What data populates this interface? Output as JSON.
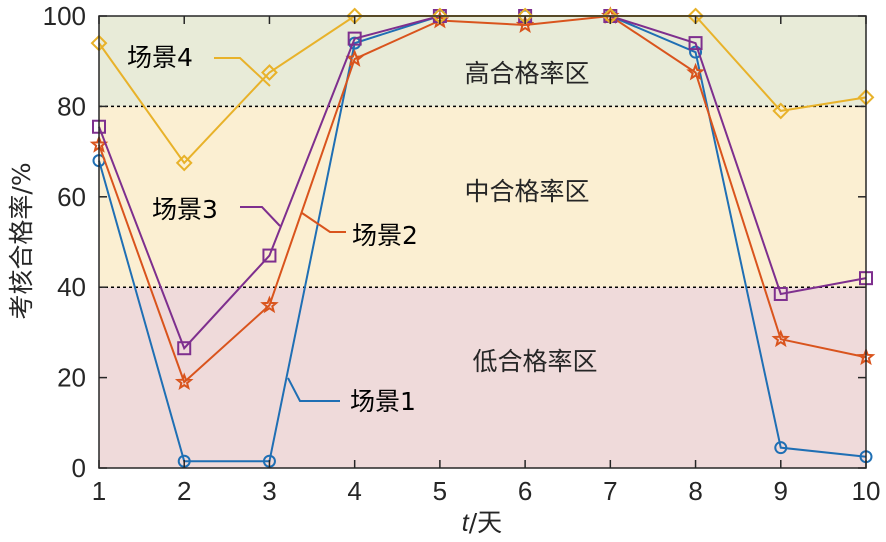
{
  "chart_data": {
    "type": "line",
    "x": [
      1,
      2,
      3,
      4,
      5,
      6,
      7,
      8,
      9,
      10
    ],
    "xlim": [
      1,
      10
    ],
    "ylim": [
      0,
      100
    ],
    "xticks": [
      "1",
      "2",
      "3",
      "4",
      "5",
      "6",
      "7",
      "8",
      "9",
      "10"
    ],
    "yticks": [
      "0",
      "20",
      "40",
      "60",
      "80",
      "100"
    ],
    "xlabel_italic": "t",
    "xlabel_rest": "/天",
    "ylabel": "考核合格率/%",
    "zones": [
      {
        "label": "低合格率区",
        "from": 0,
        "to": 40,
        "color": "#efdada"
      },
      {
        "label": "中合格率区",
        "from": 40,
        "to": 80,
        "color": "#fbefd2"
      },
      {
        "label": "高合格率区",
        "from": 80,
        "to": 100,
        "color": "#e8ebd8"
      }
    ],
    "thresholds": [
      40,
      80
    ],
    "series": [
      {
        "name": "场景1",
        "marker": "circle",
        "color": "#1f6fb4",
        "values": [
          68,
          1.5,
          1.5,
          94,
          100,
          100,
          100,
          92,
          4.5,
          2.5
        ]
      },
      {
        "name": "场景2",
        "marker": "star",
        "color": "#d9541d",
        "values": [
          71.5,
          19,
          36,
          90.5,
          99,
          98,
          100,
          87.5,
          28.5,
          24.5
        ]
      },
      {
        "name": "场景3",
        "marker": "square",
        "color": "#7e2f8e",
        "values": [
          75.5,
          26.5,
          47,
          95,
          100,
          100,
          100,
          94,
          38.5,
          42
        ]
      },
      {
        "name": "场景4",
        "marker": "diamond",
        "color": "#e8b22a",
        "values": [
          94,
          67.5,
          87.5,
          100,
          100,
          100,
          100,
          100,
          79,
          82
        ]
      }
    ]
  }
}
